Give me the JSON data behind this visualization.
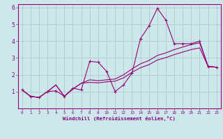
{
  "xlabel": "Windchill (Refroidissement éolien,°C)",
  "background_color": "#cce8ea",
  "grid_color": "#aacccc",
  "line_color": "#990077",
  "xlim": [
    -0.5,
    23.5
  ],
  "ylim": [
    0,
    6.2
  ],
  "xticks": [
    0,
    1,
    2,
    3,
    4,
    5,
    6,
    7,
    8,
    9,
    10,
    11,
    12,
    13,
    14,
    15,
    16,
    17,
    18,
    19,
    20,
    21,
    22,
    23
  ],
  "yticks": [
    1,
    2,
    3,
    4,
    5,
    6
  ],
  "series1_x": [
    0,
    1,
    2,
    3,
    4,
    5,
    6,
    7,
    8,
    9,
    10,
    11,
    12,
    13,
    14,
    15,
    16,
    17,
    18,
    19,
    20,
    21,
    22,
    23
  ],
  "series1_y": [
    1.1,
    0.72,
    0.65,
    1.0,
    1.05,
    0.72,
    1.2,
    1.1,
    2.8,
    2.75,
    2.2,
    1.0,
    1.4,
    2.1,
    4.15,
    4.9,
    5.95,
    5.25,
    3.85,
    3.85,
    3.85,
    4.0,
    2.5,
    2.45
  ],
  "series2_x": [
    0,
    1,
    2,
    3,
    4,
    5,
    6,
    7,
    8,
    9,
    10,
    11,
    12,
    13,
    14,
    15,
    16,
    17,
    18,
    19,
    20,
    21,
    22,
    23
  ],
  "series2_y": [
    1.1,
    0.72,
    0.65,
    1.0,
    1.4,
    0.72,
    1.15,
    1.5,
    1.7,
    1.65,
    1.7,
    1.75,
    2.0,
    2.35,
    2.65,
    2.85,
    3.15,
    3.3,
    3.5,
    3.65,
    3.8,
    3.9,
    2.5,
    2.45
  ],
  "series3_x": [
    0,
    1,
    2,
    3,
    4,
    5,
    6,
    7,
    8,
    9,
    10,
    11,
    12,
    13,
    14,
    15,
    16,
    17,
    18,
    19,
    20,
    21,
    22,
    23
  ],
  "series3_y": [
    1.1,
    0.72,
    0.65,
    1.0,
    1.4,
    0.72,
    1.15,
    1.5,
    1.55,
    1.52,
    1.58,
    1.62,
    1.82,
    2.15,
    2.42,
    2.6,
    2.88,
    3.02,
    3.2,
    3.35,
    3.5,
    3.6,
    2.5,
    2.45
  ],
  "font_color": "#880088",
  "tick_color": "#880088"
}
